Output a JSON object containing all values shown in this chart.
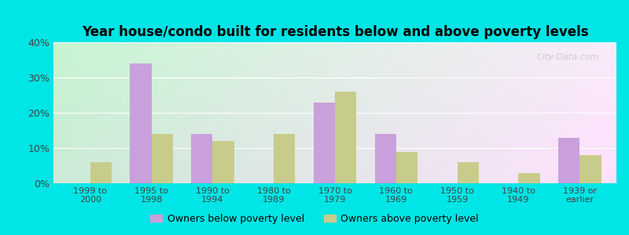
{
  "categories": [
    "1999 to\n2000",
    "1995 to\n1998",
    "1990 to\n1994",
    "1980 to\n1989",
    "1970 to\n1979",
    "1960 to\n1969",
    "1950 to\n1959",
    "1940 to\n1949",
    "1939 or\nearlier"
  ],
  "below_poverty": [
    0,
    34,
    14,
    0,
    23,
    14,
    0,
    0,
    13
  ],
  "above_poverty": [
    6,
    14,
    12,
    14,
    26,
    9,
    6,
    3,
    8
  ],
  "bar_color_below": "#c9a0dc",
  "bar_color_above": "#c8cc8a",
  "title": "Year house/condo built for residents below and above poverty levels",
  "legend_below": "Owners below poverty level",
  "legend_above": "Owners above poverty level",
  "ylim": [
    0,
    40
  ],
  "yticks": [
    0,
    10,
    20,
    30,
    40
  ],
  "ytick_labels": [
    "0%",
    "10%",
    "20%",
    "30%",
    "40%"
  ],
  "background_outer": "#00e5e5",
  "bg_color_topleft": "#c8f0d0",
  "bg_color_topright": "#f0f8f0",
  "bg_color_bottomleft": "#d8f0d8",
  "bg_color_bottomright": "#f8f8f0",
  "title_fontsize": 12,
  "bar_width": 0.35,
  "watermark": "City-Data.com"
}
